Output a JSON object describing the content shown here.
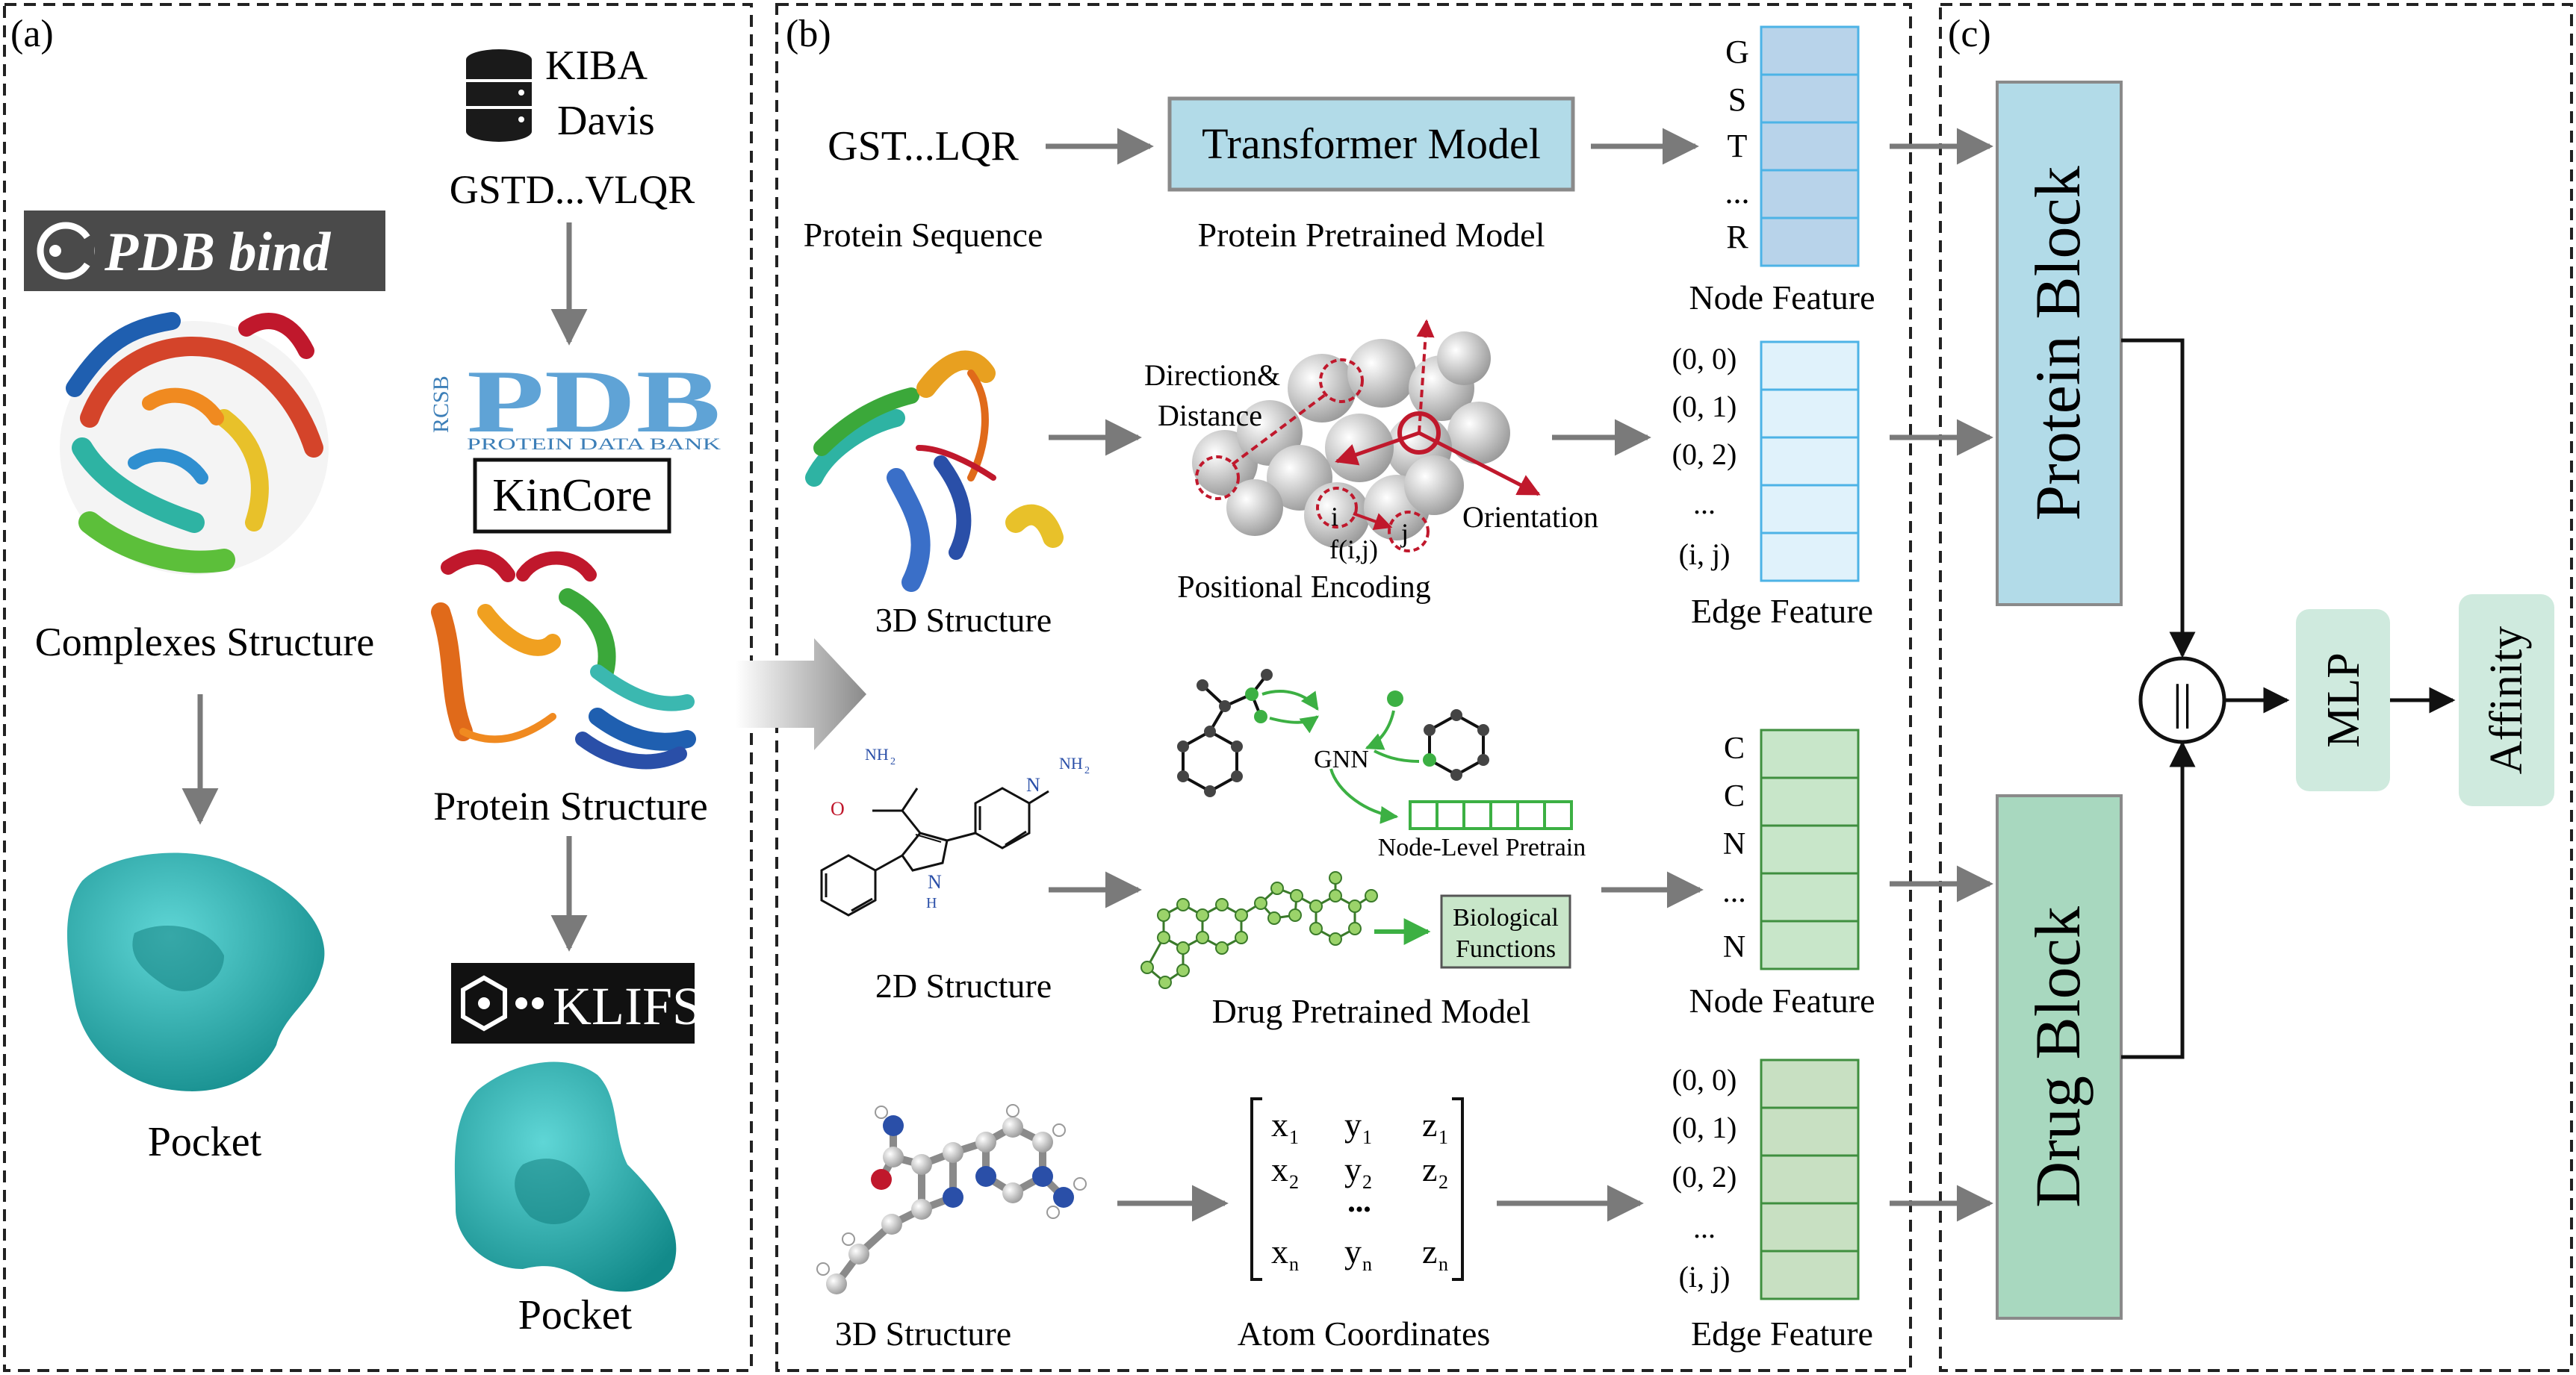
{
  "panels": {
    "a": {
      "label": "(a)",
      "pdbbind_logo": "PDB bind",
      "databases": [
        "KIBA",
        "Davis"
      ],
      "sequence": "GSTD...VLQR",
      "rcsb_logo": {
        "side": "RCSB",
        "main": "PDB",
        "sub": "PROTEIN DATA BANK"
      },
      "kincore": "KinCore",
      "klifs": "KLIFS",
      "complexes_caption": "Complexes Structure",
      "protein_structure_caption": "Protein Structure",
      "pocket_left_caption": "Pocket",
      "pocket_right_caption": "Pocket"
    },
    "b": {
      "label": "(b)",
      "row1": {
        "input": "GST...LQR",
        "input_caption": "Protein Sequence",
        "model": "Transformer Model",
        "model_caption": "Protein Pretrained Model",
        "features": [
          "G",
          "S",
          "T",
          "...",
          "R"
        ],
        "features_caption": "Node Feature"
      },
      "row2": {
        "caption_structure": "3D Structure",
        "direction_label_1": "Direction&",
        "direction_label_2": "Distance",
        "orientation_label": "Orientation",
        "i_label": "i",
        "j_label": "j",
        "fij_label": "f(i,j)",
        "encoding_caption": "Positional Encoding",
        "features": [
          "(0, 0)",
          "(0, 1)",
          "(0, 2)",
          "...",
          "(i,  j)"
        ],
        "features_caption": "Edge Feature"
      },
      "row3": {
        "nh2_a": "NH",
        "nh2_b": "NH",
        "sub2": "2",
        "o_label": "O",
        "n_label": "N",
        "nh_label": "N",
        "h_label": "H",
        "gnn": "GNN",
        "node_level": "Node-Level Pretrain",
        "bio_1": "Biological",
        "bio_2": "Functions",
        "caption_structure": "2D Structure",
        "model_caption": "Drug Pretrained Model",
        "features": [
          "C",
          "C",
          "N",
          "...",
          "N"
        ],
        "features_caption": "Node Feature"
      },
      "row4": {
        "caption_structure": "3D Structure",
        "matrix": {
          "r1": [
            "x",
            "y",
            "z"
          ],
          "r2": [
            "x",
            "y",
            "z"
          ],
          "r3": [
            "x",
            "y",
            "z"
          ],
          "sub1": "1",
          "sub2": "2",
          "subn": "n",
          "dots": "•••"
        },
        "coords_caption": "Atom Coordinates",
        "features": [
          "(0, 0)",
          "(0, 1)",
          "(0, 2)",
          "...",
          "(i,  j)"
        ],
        "features_caption": "Edge Feature"
      }
    },
    "c": {
      "label": "(c)",
      "protein_block": "Protein Block",
      "drug_block": "Drug Block",
      "concat_symbol": "||",
      "mlp": "MLP",
      "affinity": "Affinity"
    }
  },
  "colors": {
    "protein_blue": "#b2dbe8",
    "protein_cell": "#b8d3ea",
    "protein_cell_border": "#4db3e6",
    "drug_green": "#a8d8bf",
    "drug_cell": "#c8e6c9",
    "drug_cell_border": "#3f8f3f",
    "arrow_gray": "#7a7a7a",
    "red_accent": "#c0182c",
    "teal_pocket": "#1fa8a8",
    "mlp_fill": "#cfeade"
  }
}
